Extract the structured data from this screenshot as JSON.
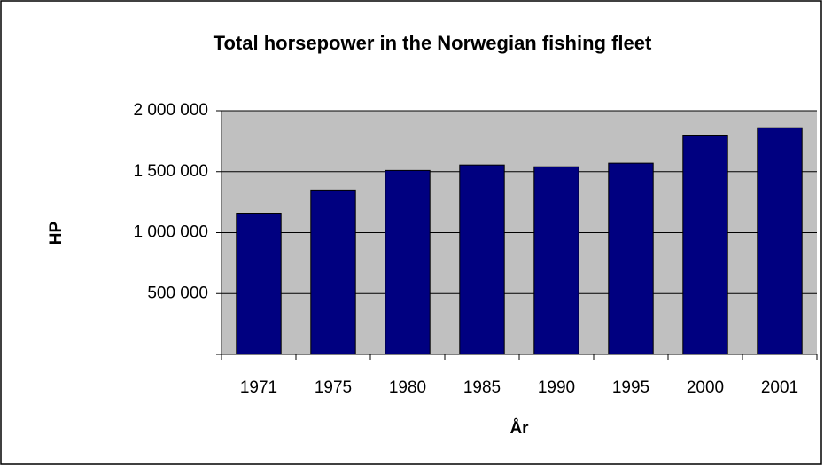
{
  "chart_data": {
    "type": "bar",
    "title": "Total horsepower in the Norwegian fishing fleet",
    "x_label": "År",
    "y_label": "HP",
    "categories": [
      "1971",
      "1975",
      "1980",
      "1985",
      "1990",
      "1995",
      "2000",
      "2001"
    ],
    "values": [
      1160000,
      1350000,
      1510000,
      1555000,
      1540000,
      1570000,
      1800000,
      1860000
    ],
    "color": "#000080",
    "ylim": [
      0,
      2000000
    ],
    "yticks": [
      {
        "value": 500000,
        "label": "500 000"
      },
      {
        "value": 1000000,
        "label": "1 000 000"
      },
      {
        "value": 1500000,
        "label": "1 500 000"
      },
      {
        "value": 2000000,
        "label": "2 000 000"
      }
    ],
    "grid": true
  }
}
